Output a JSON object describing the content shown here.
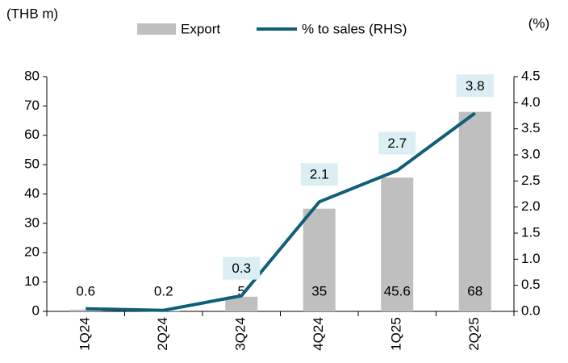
{
  "chart_data": {
    "type": "bar-line",
    "y_label": "(THB m)",
    "y2_label": "(%)",
    "categories": [
      "1Q24",
      "2Q24",
      "3Q24",
      "4Q24",
      "1Q25",
      "2Q25"
    ],
    "series": [
      {
        "name": "Export",
        "type": "bar",
        "color": "#bfbfbf",
        "values": [
          0.6,
          0.2,
          5,
          35,
          45.6,
          68
        ]
      },
      {
        "name": "% to sales (RHS)",
        "type": "line",
        "axis": "y2",
        "color": "#0f5f78",
        "values": [
          0.05,
          0.02,
          0.3,
          2.1,
          2.7,
          3.8
        ],
        "value_labels": [
          null,
          null,
          "0.3",
          "2.1",
          "2.7",
          "3.8"
        ]
      }
    ],
    "ylim": [
      0,
      80
    ],
    "yticks": [
      0,
      10,
      20,
      30,
      40,
      50,
      60,
      70,
      80
    ],
    "y2lim": [
      0,
      4.5
    ],
    "y2ticks": [
      {
        "value": 0,
        "label": "0.0"
      },
      {
        "value": 0.5,
        "label": "0.5"
      },
      {
        "value": 1,
        "label": "1.0"
      },
      {
        "value": 1.5,
        "label": "1.5"
      },
      {
        "value": 2,
        "label": "2.0"
      },
      {
        "value": 2.5,
        "label": "2.5"
      },
      {
        "value": 3,
        "label": "3.0"
      },
      {
        "value": 3.5,
        "label": "3.5"
      },
      {
        "value": 4,
        "label": "4.0"
      },
      {
        "value": 4.5,
        "label": "4.5"
      }
    ]
  }
}
